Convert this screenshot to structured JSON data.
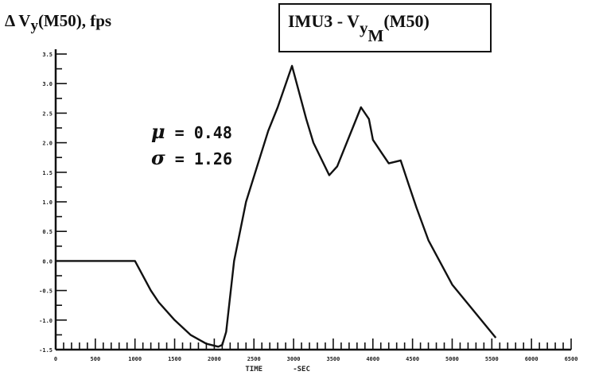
{
  "chart_data": {
    "type": "line",
    "ylabel_prefix": "Δ V",
    "ylabel_sub": "y",
    "ylabel_suffix": "(M50), fps",
    "title_prefix": "IMU3 - V",
    "title_sub1": "y",
    "title_sub2": "M",
    "title_suffix": "(M50)",
    "annotations": {
      "mu_symbol": "μ",
      "mu_eq": "= 0.48",
      "sigma_symbol": "σ",
      "sigma_eq": "= 1.26"
    },
    "xlabel_left": "TIME",
    "xlabel_right": "-SEC",
    "xlim": [
      0,
      6500
    ],
    "ylim": [
      -1.5,
      3.5
    ],
    "series": [
      {
        "x": [
          0,
          1000,
          1200,
          1300,
          1500,
          1700,
          1900,
          2050,
          2100,
          2150,
          2250,
          2400,
          2680,
          2800,
          2980,
          3160,
          3250,
          3450,
          3550,
          3850,
          3950,
          4000,
          4100,
          4200,
          4350,
          4450,
          4550,
          4700,
          5000,
          5550
        ],
        "y": [
          0,
          0,
          -0.5,
          -0.7,
          -1.0,
          -1.25,
          -1.4,
          -1.45,
          -1.42,
          -1.2,
          0,
          1.0,
          2.2,
          2.6,
          3.3,
          2.4,
          2.0,
          1.45,
          1.6,
          2.6,
          2.4,
          2.05,
          1.85,
          1.65,
          1.7,
          1.3,
          0.9,
          0.35,
          -0.4,
          -1.3
        ]
      }
    ]
  }
}
